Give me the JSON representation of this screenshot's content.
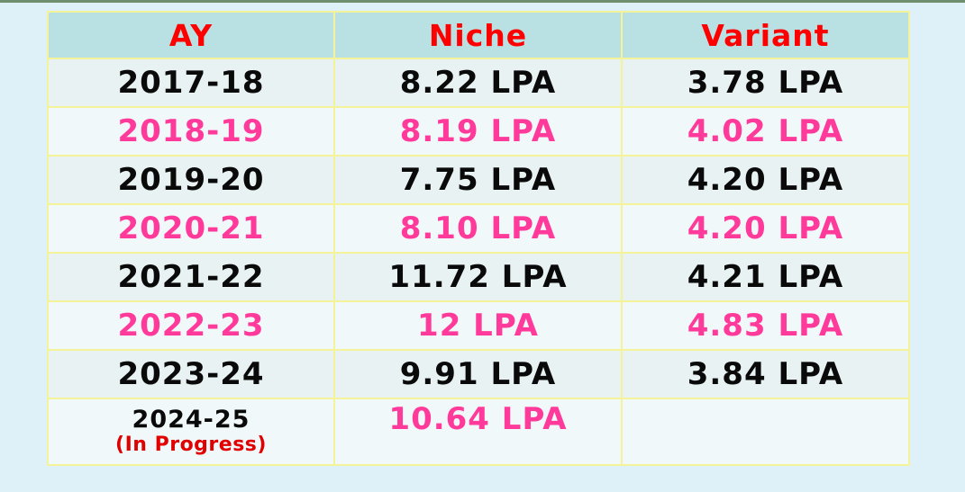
{
  "table": {
    "headers": {
      "ay": "AY",
      "niche": "Niche",
      "variant": "Variant"
    },
    "rows": [
      {
        "ay": "2017-18",
        "niche": "8.22 LPA",
        "variant": "3.78 LPA"
      },
      {
        "ay": "2018-19",
        "niche": "8.19 LPA",
        "variant": "4.02 LPA"
      },
      {
        "ay": "2019-20",
        "niche": "7.75 LPA",
        "variant": "4.20 LPA"
      },
      {
        "ay": "2020-21",
        "niche": "8.10 LPA",
        "variant": "4.20 LPA"
      },
      {
        "ay": "2021-22",
        "niche": "11.72 LPA",
        "variant": "4.21 LPA"
      },
      {
        "ay": "2022-23",
        "niche": "12 LPA",
        "variant": "4.83 LPA"
      },
      {
        "ay": "2023-24",
        "niche": "9.91 LPA",
        "variant": "3.84 LPA"
      },
      {
        "ay": "2024-25",
        "ay_note": "(In Progress)",
        "niche": "10.64 LPA",
        "variant": ""
      }
    ]
  },
  "colors": {
    "header_text": "#ff0000",
    "highlight_text": "#ff3a9a",
    "normal_text": "#0a0a0a",
    "header_bg": "#b9e0e2",
    "border": "#f4f39a"
  }
}
